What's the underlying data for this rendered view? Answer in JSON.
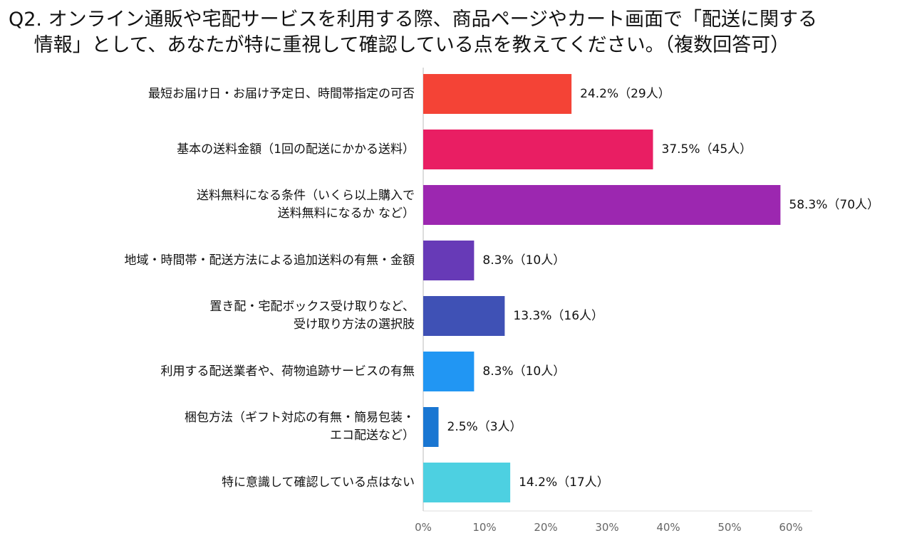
{
  "title": "Q2. オンライン通販や宅配サービスを利用する際、商品ページやカート画面で「配送に関する\n　 情報」として、あなたが特に重視して確認している点を教えてください。（複数回答可）",
  "chart_data": {
    "type": "bar",
    "orientation": "horizontal",
    "title": "Q2. オンライン通販や宅配サービスを利用する際、商品ページやカート画面で「配送に関する情報」として、あなたが特に重視して確認している点を教えてください。（複数回答可）",
    "categories": [
      "最短お届け日・お届け予定日、時間帯指定の可否",
      "基本の送料金額（1回の配送にかかる送料）",
      "送料無料になる条件（いくら以上購入で\n送料無料になるか など）",
      "地域・時間帯・配送方法による追加送料の有無・金額",
      "置き配・宅配ボックス受け取りなど、\n受け取り方法の選択肢",
      "利用する配送業者や、荷物追跡サービスの有無",
      "梱包方法（ギフト対応の有無・簡易包装・\nエコ配送など）",
      "特に意識して確認している点はない"
    ],
    "values": [
      24.2,
      37.5,
      58.3,
      8.3,
      13.3,
      8.3,
      2.5,
      14.2
    ],
    "data_labels": [
      "24.2%（29人）",
      "37.5%（45人）",
      "58.3%（70人）",
      "8.3%（10人）",
      "13.3%（16人）",
      "8.3%（10人）",
      "2.5%（3人）",
      "14.2%（17人）"
    ],
    "colors": [
      "#f44336",
      "#e91e63",
      "#9c27b0",
      "#673ab7",
      "#3f51b5",
      "#2196f3",
      "#1976d2",
      "#4dd0e1"
    ],
    "xlim": [
      0,
      60
    ],
    "xticks": [
      0,
      10,
      20,
      30,
      40,
      50,
      60
    ],
    "xtick_labels": [
      "0%",
      "10%",
      "20%",
      "30%",
      "40%",
      "50%",
      "60%"
    ],
    "grid": false,
    "legend": "none"
  }
}
